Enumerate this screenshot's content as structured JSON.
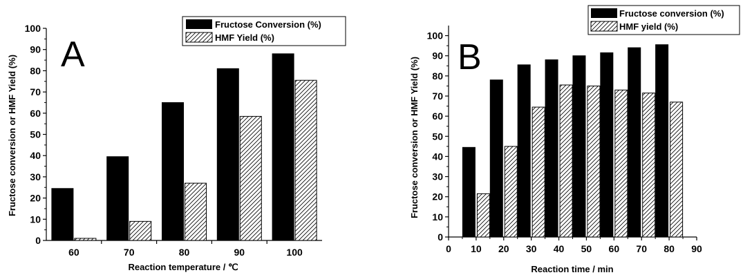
{
  "chart_data": [
    {
      "type": "bar",
      "panel_label": "A",
      "xlabel": "Reaction temperature / ℃",
      "ylabel": "Fructose conversion or HMF Yield (%)",
      "categories": [
        "60",
        "70",
        "80",
        "90",
        "100"
      ],
      "yticks": [
        "0",
        "10",
        "20",
        "30",
        "40",
        "50",
        "60",
        "70",
        "80",
        "90",
        "100"
      ],
      "ylim": [
        0,
        100
      ],
      "grid": false,
      "legend_position": "top-right",
      "series": [
        {
          "name": "Fructose Conversion (%)",
          "fill": "solid",
          "color": "#000000",
          "values": [
            24.5,
            39.5,
            65,
            81,
            88
          ]
        },
        {
          "name": "HMF Yield (%)",
          "fill": "hatched",
          "color": "#000000",
          "values": [
            1,
            9,
            27,
            58.5,
            75.5
          ]
        }
      ]
    },
    {
      "type": "bar",
      "panel_label": "B",
      "xlabel": "Reaction time / min",
      "ylabel": "Fructose conversion or HMF Yield (%)",
      "xticks": [
        "0",
        "10",
        "20",
        "30",
        "40",
        "50",
        "60",
        "70",
        "80",
        "90"
      ],
      "xlim": [
        0,
        90
      ],
      "yticks": [
        "0",
        "10",
        "20",
        "30",
        "40",
        "50",
        "60",
        "70",
        "80",
        "90",
        "100"
      ],
      "ylim": [
        0,
        105
      ],
      "grid": false,
      "legend_position": "top-right",
      "x": [
        10,
        20,
        30,
        40,
        50,
        60,
        70,
        80
      ],
      "series": [
        {
          "name": "Fructose conversion (%)",
          "fill": "solid",
          "color": "#000000",
          "values": [
            44.5,
            78,
            85.5,
            88,
            90,
            91.5,
            94,
            95.5
          ]
        },
        {
          "name": "HMF yield (%)",
          "fill": "hatched",
          "color": "#000000",
          "values": [
            21.5,
            45,
            64.5,
            75.5,
            75,
            73,
            71.5,
            67
          ]
        }
      ]
    }
  ]
}
